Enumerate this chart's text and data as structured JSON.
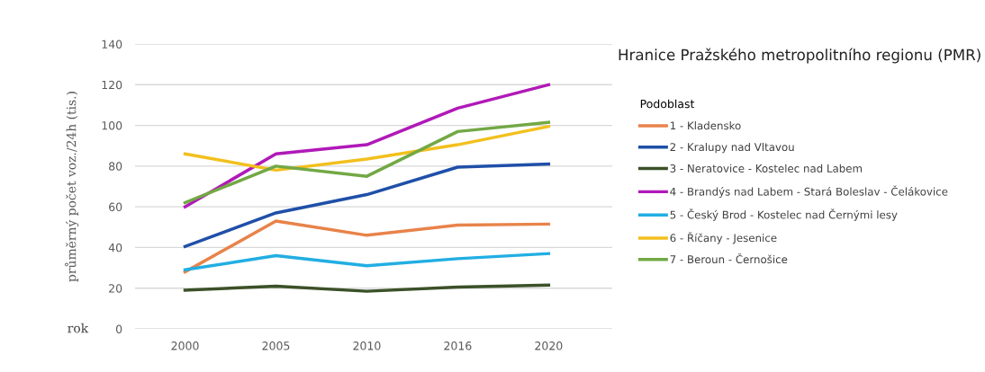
{
  "chart_data": {
    "type": "line",
    "title": "Hranice Pražského metropolitního regionu (PMR)",
    "xlabel": "rok",
    "ylabel": "průměrný počet voz./24h (tis.)",
    "legend_title": "Podoblast",
    "categories": [
      "2000",
      "2005",
      "2010",
      "2016",
      "2020"
    ],
    "ylim": [
      0,
      140
    ],
    "yticks": [
      0,
      20,
      40,
      60,
      80,
      100,
      120,
      140
    ],
    "grid": "y",
    "legend": "right",
    "marker": "none",
    "line_style": "solid",
    "series": [
      {
        "name": "1 - Kladensko",
        "color": "#e8834a",
        "values": [
          28,
          53,
          46,
          51,
          51.5
        ]
      },
      {
        "name": "2 - Kralupy nad Vltavou",
        "color": "#1f4fa8",
        "values": [
          40.5,
          57,
          66,
          79.5,
          81
        ]
      },
      {
        "name": "3 - Neratovice - Kostelec nad Labem",
        "color": "#3b5128",
        "values": [
          19,
          21,
          18.5,
          20.5,
          21.5
        ]
      },
      {
        "name": "4 - Brandýs nad Labem - Stará Boleslav - Čelákovice",
        "color": "#b019b8",
        "values": [
          60,
          86,
          90.5,
          108.5,
          120
        ]
      },
      {
        "name": "5 - Český Brod - Kostelec nad Černými lesy",
        "color": "#21aee3",
        "values": [
          29,
          36,
          31,
          34.5,
          37
        ]
      },
      {
        "name": "6 - Říčany - Jesenice",
        "color": "#f2c01e",
        "values": [
          86,
          78,
          83.5,
          90.5,
          99.5
        ]
      },
      {
        "name": "7 - Beroun - Černošice",
        "color": "#72a844",
        "values": [
          62,
          80,
          75,
          97,
          101.5
        ]
      }
    ]
  }
}
